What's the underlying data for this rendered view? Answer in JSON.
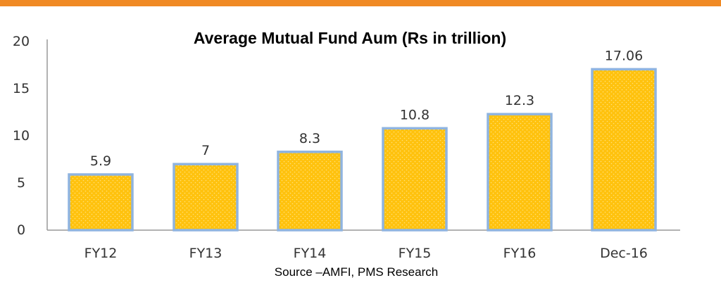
{
  "chart_data": {
    "type": "bar",
    "title": "Average Mutual Fund Aum (Rs in trillion)",
    "source": "Source –AMFI, PMS Research",
    "categories": [
      "FY12",
      "FY13",
      "FY14",
      "FY15",
      "FY16",
      "Dec-16"
    ],
    "values": [
      5.9,
      7,
      8.3,
      10.8,
      12.3,
      17.06
    ],
    "data_labels": [
      "5.9",
      "7",
      "8.3",
      "10.8",
      "12.3",
      "17.06"
    ],
    "yticks": [
      "0",
      "5",
      "10",
      "15",
      "20"
    ],
    "ylim": [
      0,
      20
    ],
    "xlabel": "",
    "ylabel": "",
    "grid": false,
    "colors": {
      "bar_fill": "#ffc20e",
      "bar_border": "#8fb4e0",
      "top_band": "#f08a24"
    }
  }
}
